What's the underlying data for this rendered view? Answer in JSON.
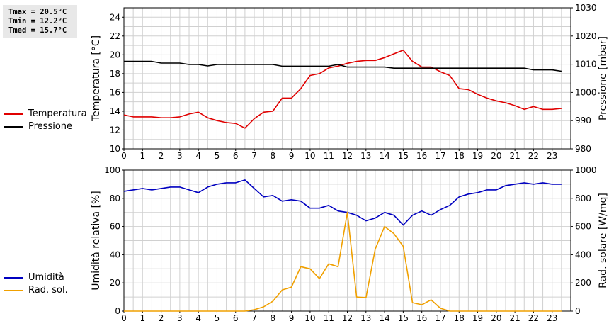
{
  "stats": {
    "tmax": "Tmax = 20.5°C",
    "tmin": "Tmin = 12.2°C",
    "tmed": "Tmed = 15.7°C"
  },
  "legend": {
    "temperatura": "Temperatura",
    "pressione": "Pressione",
    "umidita": "Umidità",
    "rad_sol": "Rad. sol."
  },
  "colors": {
    "temperatura": "#e00000",
    "pressione": "#000000",
    "umidita": "#0000c0",
    "rad_sol": "#f0a000"
  },
  "chart_data": [
    {
      "type": "line",
      "ylabel": "Temperatura [°C]",
      "y2label": "Pressione [mbar]",
      "xlim": [
        0,
        24
      ],
      "xticks": [
        "0",
        "1",
        "2",
        "3",
        "4",
        "5",
        "6",
        "7",
        "8",
        "9",
        "10",
        "11",
        "12",
        "13",
        "14",
        "15",
        "16",
        "17",
        "18",
        "19",
        "20",
        "21",
        "22",
        "23"
      ],
      "ylim": [
        10,
        25
      ],
      "yticks": [
        "10",
        "12",
        "14",
        "16",
        "18",
        "20",
        "22",
        "24"
      ],
      "y2lim": [
        980,
        1030
      ],
      "y2ticks": [
        "980",
        "990",
        "1000",
        "1010",
        "1020",
        "1030"
      ],
      "grid": true,
      "legend_position": "left",
      "series": [
        {
          "name": "Temperatura",
          "axis": "left",
          "x": [
            0,
            0.5,
            1,
            1.5,
            2,
            2.5,
            3,
            3.5,
            4,
            4.5,
            5,
            5.5,
            6,
            6.5,
            7,
            7.5,
            8,
            8.5,
            9,
            9.5,
            10,
            10.5,
            11,
            11.5,
            12,
            12.5,
            13,
            13.5,
            14,
            14.5,
            15,
            15.5,
            16,
            16.5,
            17,
            17.5,
            18,
            18.5,
            19,
            19.5,
            20,
            20.5,
            21,
            21.5,
            22,
            22.5,
            23,
            23.5
          ],
          "y": [
            13.6,
            13.4,
            13.4,
            13.4,
            13.3,
            13.3,
            13.4,
            13.7,
            13.9,
            13.3,
            13.0,
            12.8,
            12.7,
            12.2,
            13.2,
            13.9,
            14.0,
            15.4,
            15.4,
            16.4,
            17.8,
            18.0,
            18.6,
            18.8,
            19.1,
            19.3,
            19.4,
            19.4,
            19.7,
            20.1,
            20.5,
            19.3,
            18.7,
            18.7,
            18.2,
            17.8,
            16.4,
            16.3,
            15.8,
            15.4,
            15.1,
            14.9,
            14.6,
            14.2,
            14.5,
            14.2,
            14.2,
            14.3
          ]
        },
        {
          "name": "Pressione",
          "axis": "right",
          "x": [
            0,
            0.5,
            1,
            1.5,
            2,
            2.5,
            3,
            3.5,
            4,
            4.5,
            5,
            5.5,
            6,
            6.5,
            7,
            7.5,
            8,
            8.5,
            9,
            9.5,
            10,
            10.5,
            11,
            11.5,
            12,
            12.5,
            13,
            13.5,
            14,
            14.5,
            15,
            15.5,
            16,
            16.5,
            17,
            17.5,
            18,
            18.5,
            19,
            19.5,
            20,
            20.5,
            21,
            21.5,
            22,
            22.5,
            23,
            23.5
          ],
          "y": [
            1011,
            1011,
            1011,
            1011,
            1010.4,
            1010.4,
            1010.4,
            1009.9,
            1009.9,
            1009.4,
            1009.9,
            1009.9,
            1009.9,
            1009.9,
            1009.9,
            1009.9,
            1009.9,
            1009.3,
            1009.3,
            1009.3,
            1009.3,
            1009.3,
            1009.3,
            1009.9,
            1009.0,
            1009.0,
            1009.0,
            1009.0,
            1009.0,
            1008.6,
            1008.6,
            1008.6,
            1008.6,
            1008.6,
            1008.6,
            1008.6,
            1008.6,
            1008.6,
            1008.6,
            1008.6,
            1008.6,
            1008.6,
            1008.6,
            1008.6,
            1008.0,
            1008.0,
            1008.0,
            1007.5
          ]
        }
      ]
    },
    {
      "type": "line",
      "ylabel": "Umidità relativa [%]",
      "y2label": "Rad. solare [W/mq]",
      "xlim": [
        0,
        24
      ],
      "xticks": [
        "0",
        "1",
        "2",
        "3",
        "4",
        "5",
        "6",
        "7",
        "8",
        "9",
        "10",
        "11",
        "12",
        "13",
        "14",
        "15",
        "16",
        "17",
        "18",
        "19",
        "20",
        "21",
        "22",
        "23"
      ],
      "ylim": [
        0,
        100
      ],
      "yticks": [
        "0",
        "20",
        "40",
        "60",
        "80",
        "100"
      ],
      "y2lim": [
        0,
        1000
      ],
      "y2ticks": [
        "0",
        "200",
        "400",
        "600",
        "800",
        "1000"
      ],
      "grid": true,
      "legend_position": "left",
      "series": [
        {
          "name": "Umidità",
          "axis": "left",
          "x": [
            0,
            0.5,
            1,
            1.5,
            2,
            2.5,
            3,
            3.5,
            4,
            4.5,
            5,
            5.5,
            6,
            6.5,
            7,
            7.5,
            8,
            8.5,
            9,
            9.5,
            10,
            10.5,
            11,
            11.5,
            12,
            12.5,
            13,
            13.5,
            14,
            14.5,
            15,
            15.5,
            16,
            16.5,
            17,
            17.5,
            18,
            18.5,
            19,
            19.5,
            20,
            20.5,
            21,
            21.5,
            22,
            22.5,
            23,
            23.5
          ],
          "y": [
            85,
            86,
            87,
            86,
            87,
            88,
            88,
            86,
            84,
            88,
            90,
            91,
            91,
            93,
            87,
            81,
            82,
            78,
            79,
            78,
            73,
            73,
            75,
            71,
            70,
            68,
            64,
            66,
            70,
            68,
            61,
            68,
            71,
            68,
            72,
            75,
            81,
            83,
            84,
            86,
            86,
            89,
            90,
            91,
            90,
            91,
            90,
            90
          ]
        },
        {
          "name": "Rad. sol.",
          "axis": "right",
          "x": [
            0,
            0.5,
            1,
            1.5,
            2,
            2.5,
            3,
            3.5,
            4,
            4.5,
            5,
            5.5,
            6,
            6.5,
            7,
            7.5,
            8,
            8.5,
            9,
            9.5,
            10,
            10.5,
            11,
            11.5,
            12,
            12.5,
            13,
            13.5,
            14,
            14.5,
            15,
            15.5,
            16,
            16.5,
            17,
            17.5,
            18,
            18.5,
            19,
            19.5,
            20,
            20.5,
            21,
            21.5,
            22,
            22.5,
            23,
            23.5
          ],
          "y": [
            0,
            0,
            0,
            0,
            0,
            0,
            0,
            0,
            0,
            0,
            0,
            0,
            0,
            0,
            10,
            30,
            70,
            150,
            170,
            315,
            300,
            230,
            335,
            315,
            700,
            100,
            95,
            440,
            600,
            550,
            460,
            60,
            45,
            80,
            20,
            0,
            0,
            0,
            0,
            0,
            0,
            0,
            0,
            0,
            0,
            0,
            0,
            0
          ]
        }
      ]
    }
  ]
}
